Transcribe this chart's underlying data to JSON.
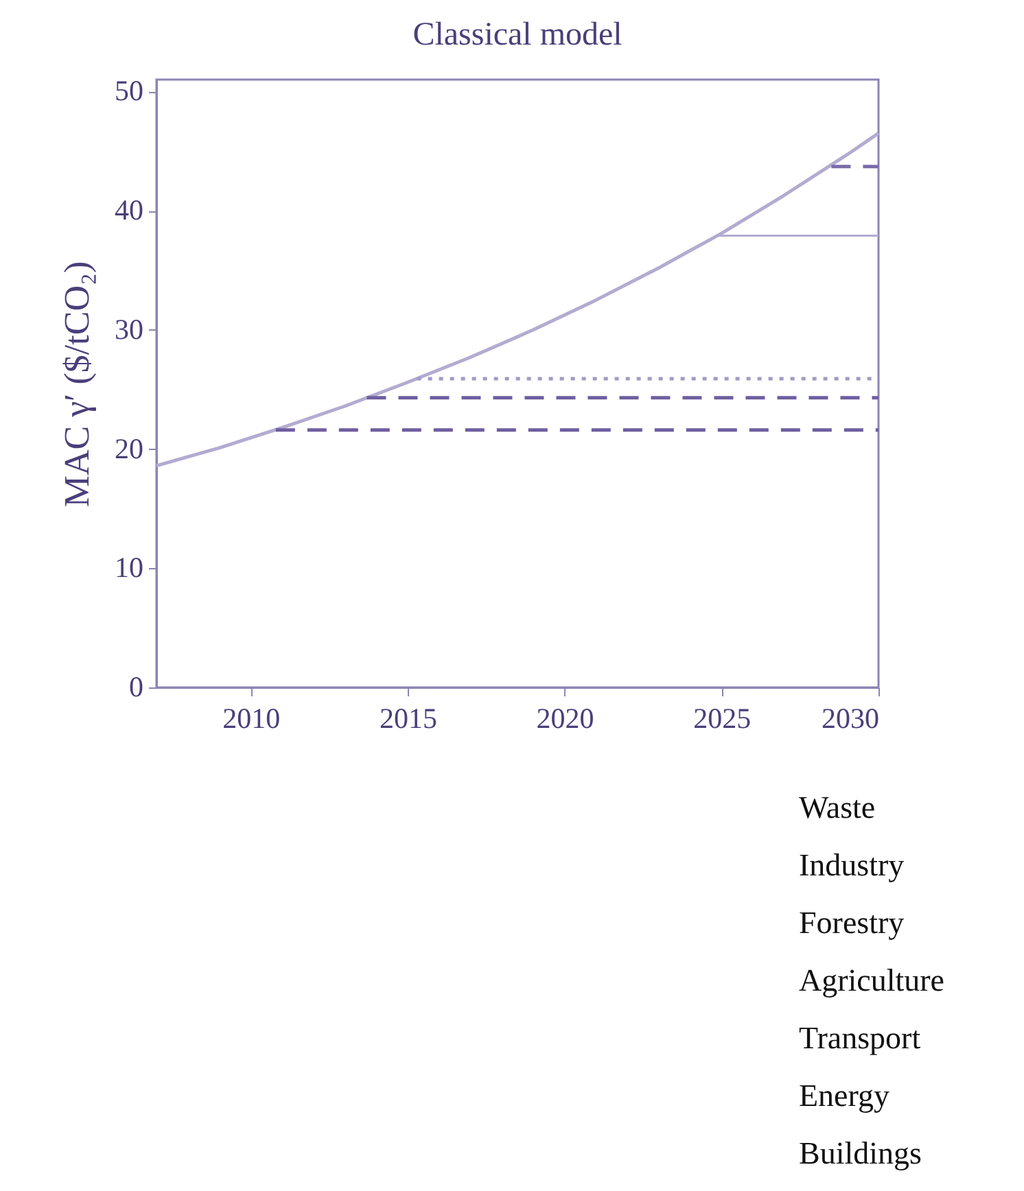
{
  "chart_data": {
    "type": "line",
    "title": "Classical model",
    "ylabel": "MAC γ′ ($/tCO₂)",
    "xlim": [
      2007,
      2030
    ],
    "xticks": [
      2010,
      2015,
      2020,
      2025,
      2030
    ],
    "ylim": [
      0,
      51
    ],
    "yticks": [
      0,
      10,
      20,
      30,
      40,
      50
    ],
    "series": [
      {
        "color": "#b3abd0",
        "line_style": "solid",
        "x": [
          2007,
          2009,
          2011,
          2013,
          2015,
          2017,
          2019,
          2021,
          2023,
          2025,
          2027,
          2029,
          2030
        ],
        "values": [
          18.6,
          20.1,
          21.8,
          23.6,
          25.6,
          27.7,
          30.0,
          32.5,
          35.2,
          38.1,
          41.3,
          44.7,
          46.5
        ]
      },
      {
        "color": "#6e5e9e",
        "line_style": "dashed",
        "x": [
          2010.8,
          2030
        ],
        "values": [
          21.6,
          21.6
        ]
      },
      {
        "color": "#6e5e9e",
        "line_style": "dashed",
        "x": [
          2013.7,
          2030
        ],
        "values": [
          24.3,
          24.3
        ]
      },
      {
        "color": "#a29ac4",
        "line_style": "dotted",
        "x": [
          2015.3,
          2030
        ],
        "values": [
          25.9,
          25.9
        ]
      },
      {
        "color": "#b3abd0",
        "line_style": "solid",
        "x": [
          2024.9,
          2030
        ],
        "values": [
          37.9,
          37.9
        ]
      },
      {
        "color": "#7a6ba8",
        "line_style": "dashed",
        "x": [
          2028.5,
          2030
        ],
        "values": [
          43.7,
          43.7
        ]
      }
    ],
    "annotations": [
      "Waste",
      "Industry",
      "Forestry",
      "Agriculture",
      "Transport",
      "Energy",
      "Buildings"
    ]
  }
}
